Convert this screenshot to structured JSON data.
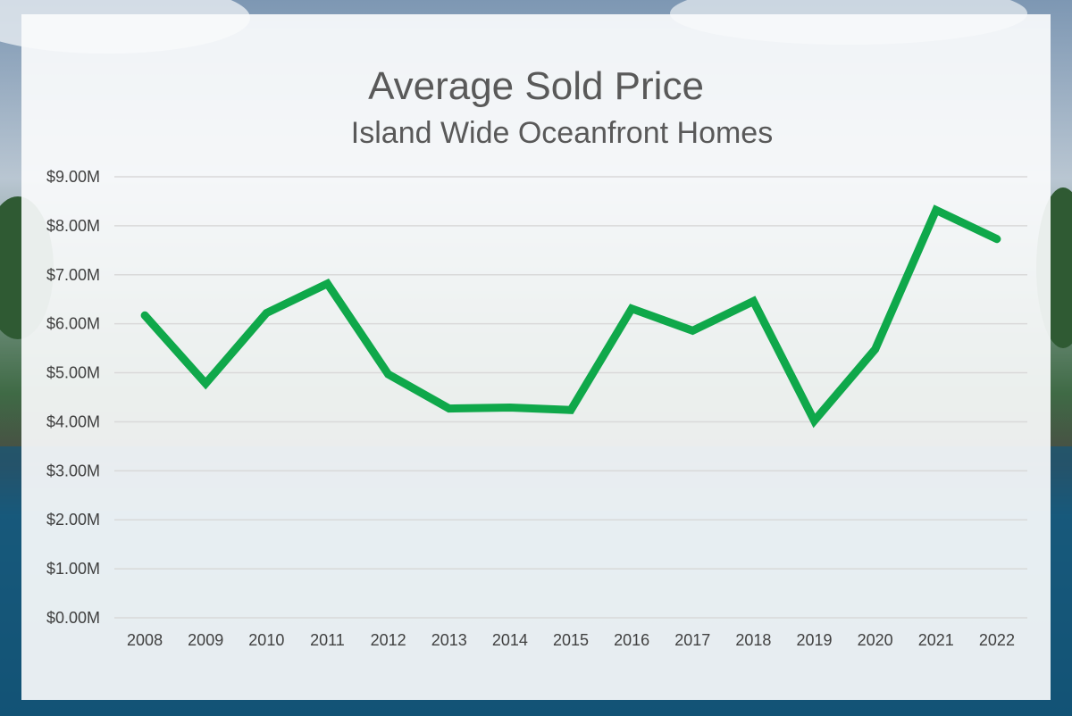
{
  "colors": {
    "line": "#0fa84a",
    "grid": "#d9d9d9",
    "text": "#595959",
    "panel": "#fafbfc"
  },
  "background": {
    "description_icon": "oceanfront-photo"
  },
  "chart_data": {
    "type": "line",
    "title": "Average Sold Price",
    "subtitle": "Island Wide Oceanfront Homes",
    "xlabel": "",
    "ylabel": "",
    "categories": [
      "2008",
      "2009",
      "2010",
      "2011",
      "2012",
      "2013",
      "2014",
      "2015",
      "2016",
      "2017",
      "2018",
      "2019",
      "2020",
      "2021",
      "2022"
    ],
    "series": [
      {
        "values": [
          6.17,
          4.78,
          6.22,
          6.82,
          4.97,
          4.27,
          4.29,
          4.24,
          6.31,
          5.86,
          6.46,
          4.02,
          5.48,
          8.32,
          7.73
        ]
      }
    ],
    "ylim": [
      0,
      9
    ],
    "yticks": [
      0,
      1,
      2,
      3,
      4,
      5,
      6,
      7,
      8,
      9
    ],
    "ytick_labels": [
      "$0.00M",
      "$1.00M",
      "$2.00M",
      "$3.00M",
      "$4.00M",
      "$5.00M",
      "$6.00M",
      "$7.00M",
      "$8.00M",
      "$9.00M"
    ],
    "grid": true,
    "legend": "none"
  }
}
